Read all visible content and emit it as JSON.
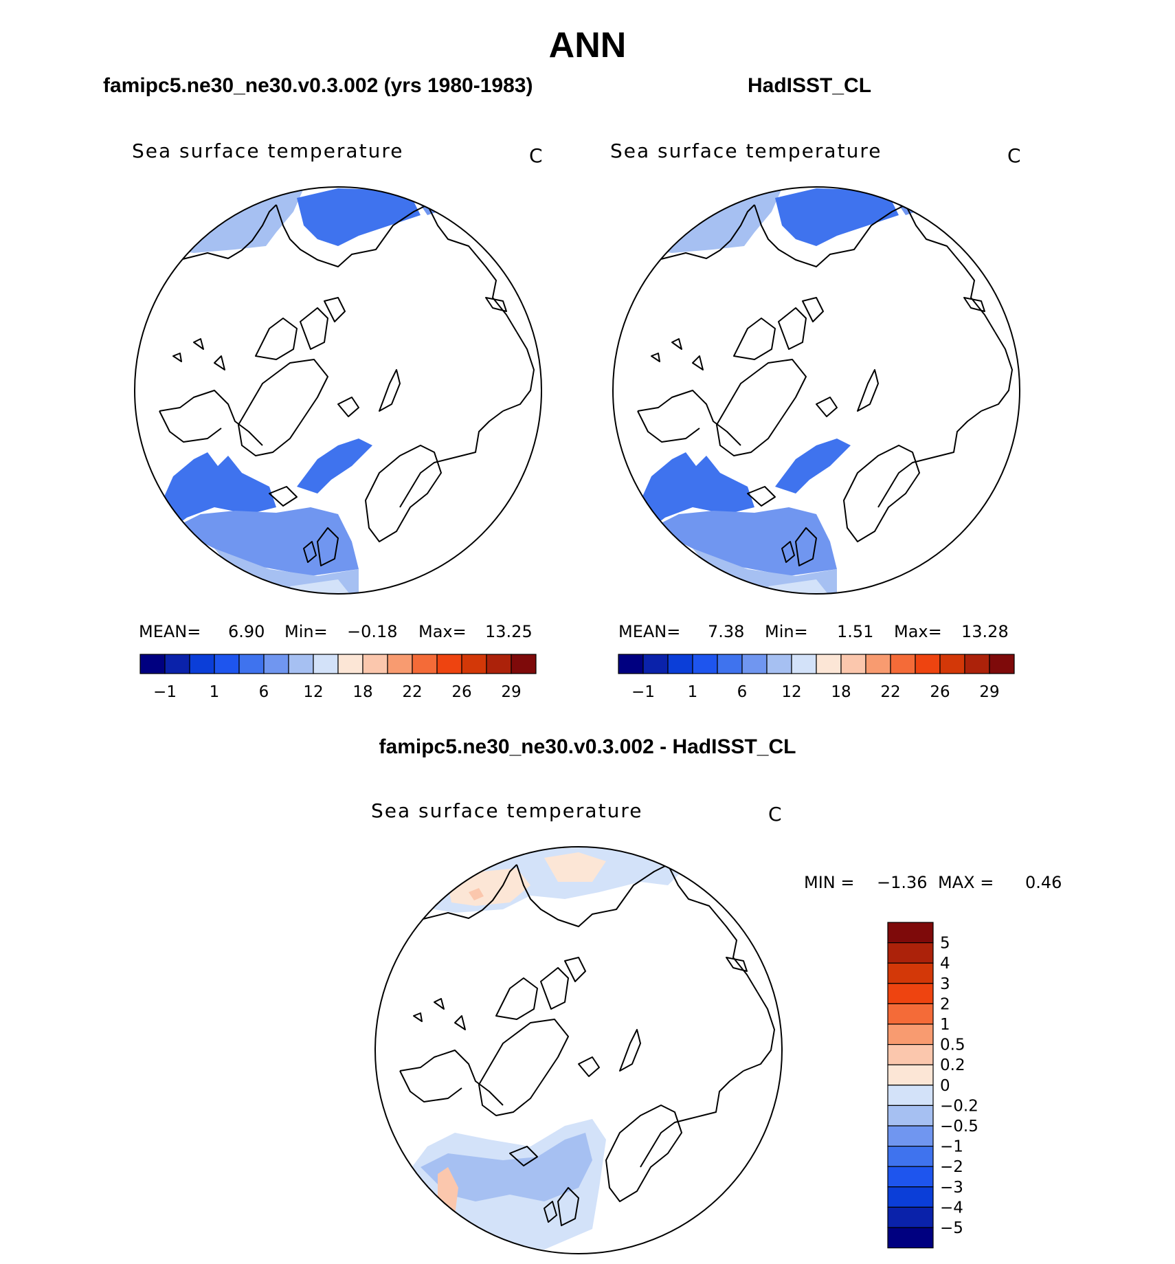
{
  "figure": {
    "title": "ANN"
  },
  "panels": {
    "left": {
      "header": "famipc5.ne30_ne30.v0.3.002 (yrs 1980-1983)",
      "map_title": "Sea surface temperature",
      "units": "C",
      "stats": {
        "mean_label": "MEAN=",
        "mean": "6.90",
        "min_label": "Min=",
        "min": "−0.18",
        "max_label": "Max=",
        "max": "13.25"
      }
    },
    "right": {
      "header": "HadISST_CL",
      "map_title": "Sea surface temperature",
      "units": "C",
      "stats": {
        "mean_label": "MEAN=",
        "mean": "7.38",
        "min_label": "Min=",
        "min": "1.51",
        "max_label": "Max=",
        "max": "13.28"
      }
    },
    "bottom": {
      "header": "famipc5.ne30_ne30.v0.3.002 - HadISST_CL",
      "map_title": "Sea surface temperature",
      "units": "C",
      "stats": {
        "min_label": "MIN =",
        "min": "−1.36",
        "max_label": "MAX =",
        "max": "0.46"
      }
    }
  },
  "colorbars": {
    "absolute": {
      "colors": [
        "#000080",
        "#0a22aa",
        "#0b3ed8",
        "#1e55ee",
        "#3f73ee",
        "#7096f0",
        "#a6c0f2",
        "#d3e2f9",
        "#fce6d6",
        "#fbc7ad",
        "#f89b70",
        "#f46b38",
        "#ee4410",
        "#d33808",
        "#ac220a",
        "#7e0a0a"
      ],
      "labels": [
        "−1",
        "1",
        "6",
        "12",
        "18",
        "22",
        "26",
        "29"
      ]
    },
    "difference": {
      "colors": [
        "#7e0a0a",
        "#ac220a",
        "#d33808",
        "#ee4410",
        "#f46b38",
        "#f89b70",
        "#fbc7ad",
        "#fce6d6",
        "#d3e2f9",
        "#a6c0f2",
        "#7096f0",
        "#3f73ee",
        "#1e55ee",
        "#0b3ed8",
        "#0a22aa",
        "#000080"
      ],
      "labels": [
        "5",
        "4",
        "3",
        "2",
        "1",
        "0.5",
        "0.2",
        "0",
        "−0.2",
        "−0.5",
        "−1",
        "−2",
        "−3",
        "−4",
        "−5"
      ]
    }
  },
  "map_fill_colors": {
    "sst_deep": "#3f73ee",
    "sst_mid": "#7096f0",
    "sst_light": "#a6c0f2",
    "sst_pale": "#d3e2f9",
    "diff_pos": "#fbc7ad",
    "diff_pos_light": "#fce6d6",
    "diff_neg": "#a6c0f2",
    "diff_neg_light": "#d3e2f9"
  }
}
